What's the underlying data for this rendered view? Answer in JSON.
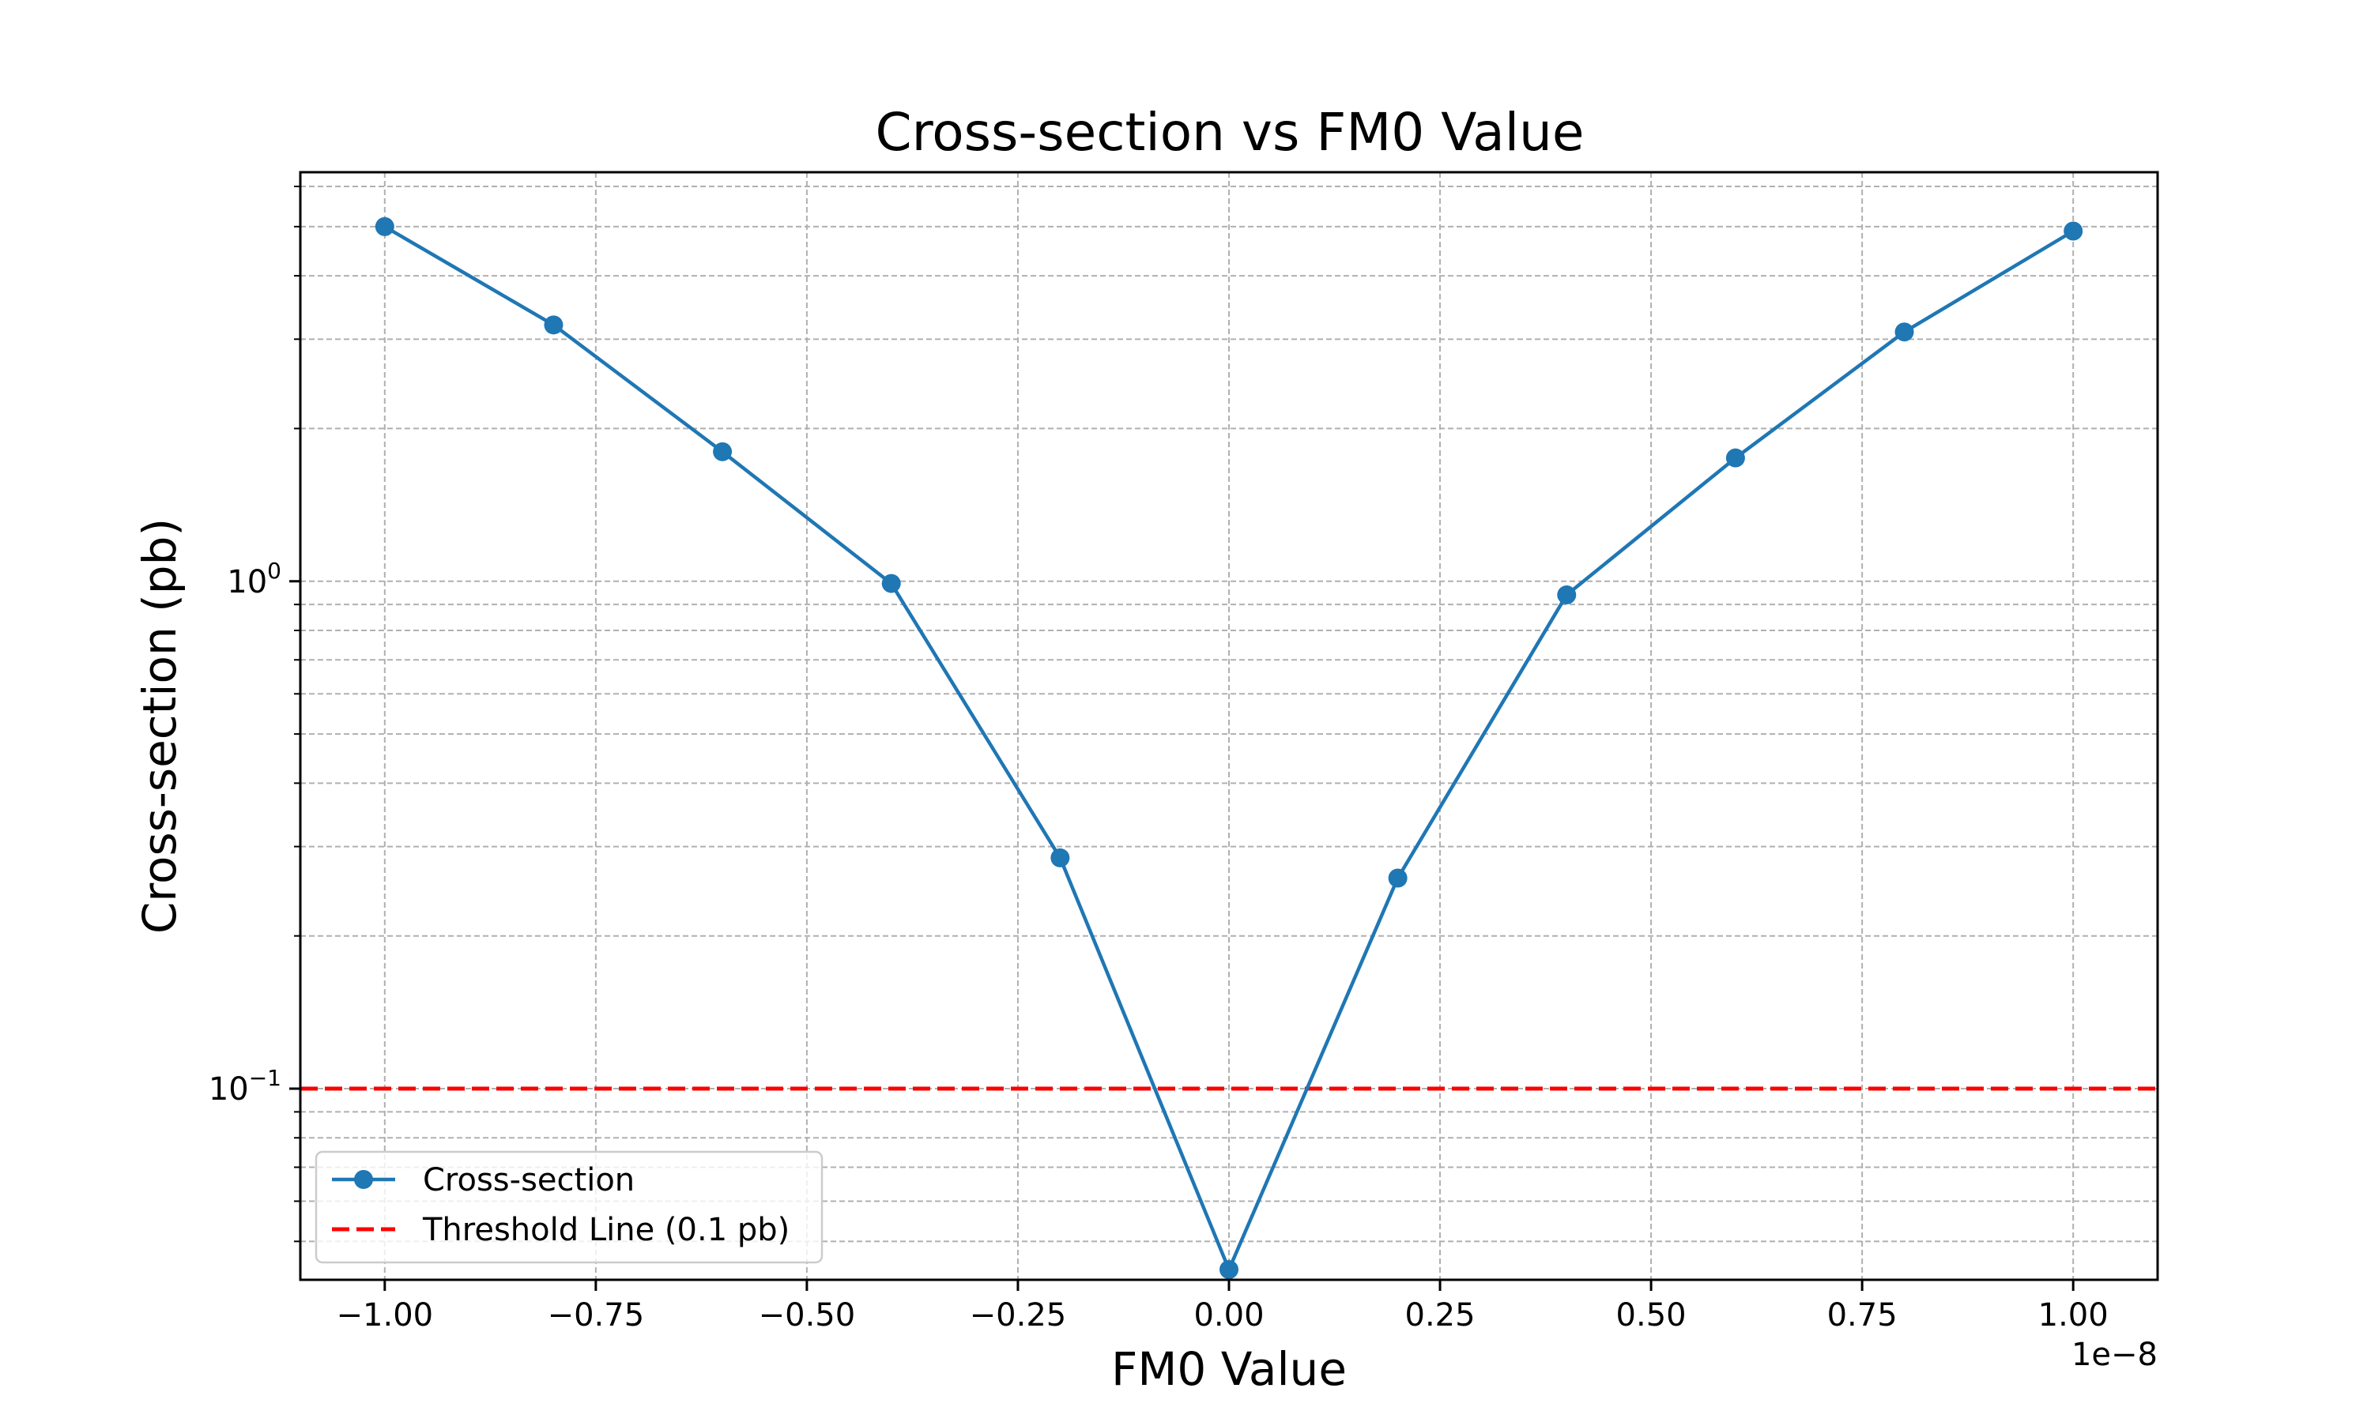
{
  "chart_data": {
    "type": "line",
    "title": "Cross-section vs FM0 Value",
    "xlabel": "FM0 Value",
    "ylabel": "Cross-section (pb)",
    "x_offset_label": "1e−8",
    "x_scale": "linear",
    "y_scale": "log",
    "xlim": [
      -1.1,
      1.1
    ],
    "ylim": [
      0.042,
      6.4
    ],
    "x_ticks": [
      -1.0,
      -0.75,
      -0.5,
      -0.25,
      0.0,
      0.25,
      0.5,
      0.75,
      1.0
    ],
    "x_tick_labels": [
      "−1.00",
      "−0.75",
      "−0.50",
      "−0.25",
      "0.00",
      "0.25",
      "0.50",
      "0.75",
      "1.00"
    ],
    "y_major_ticks": [
      {
        "value": 0.1,
        "base": "10",
        "exp": "−1"
      },
      {
        "value": 1,
        "base": "10",
        "exp": "0"
      }
    ],
    "grid": true,
    "legend_position": "lower-left",
    "series": [
      {
        "name": "Cross-section",
        "color": "#1f77b4",
        "marker": "circle",
        "x": [
          -1.0,
          -0.8,
          -0.6,
          -0.4,
          -0.2,
          0.0,
          0.2,
          0.4,
          0.6,
          0.8,
          1.0
        ],
        "y": [
          5.0,
          3.2,
          1.8,
          0.99,
          0.285,
          0.044,
          0.26,
          0.94,
          1.75,
          3.1,
          4.9
        ]
      }
    ],
    "reference_lines": [
      {
        "name": "Threshold Line (0.1 pb)",
        "orientation": "horizontal",
        "value": 0.1,
        "color": "#ff0000",
        "style": "dashed"
      }
    ]
  }
}
